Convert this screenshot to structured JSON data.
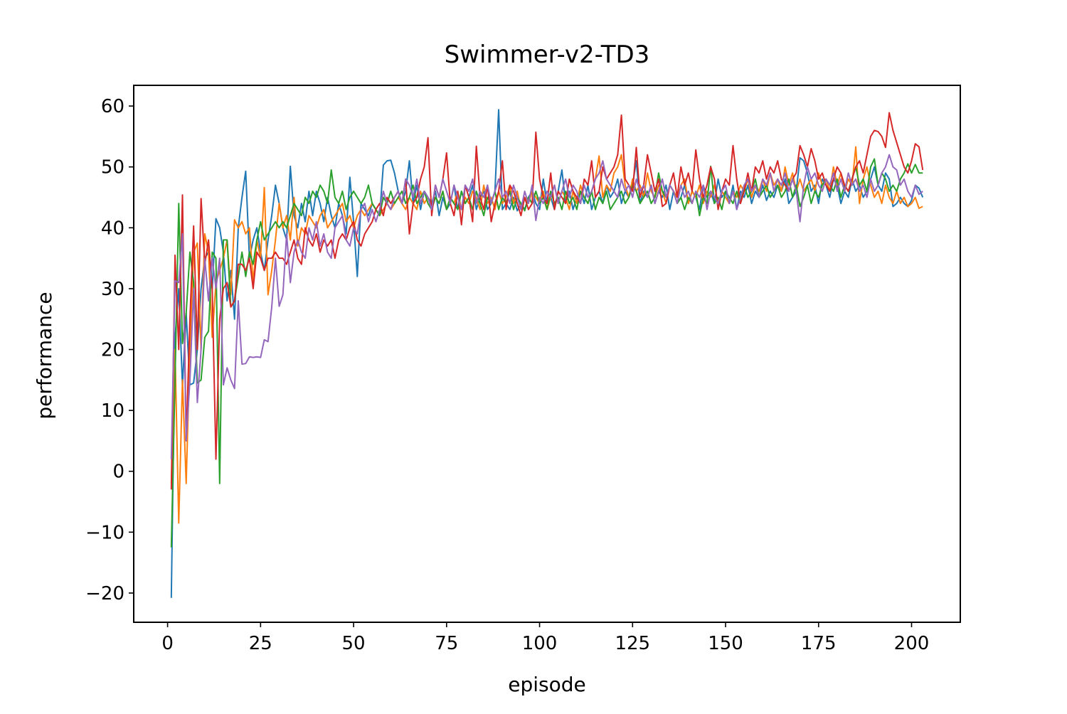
{
  "chart_data": {
    "type": "line",
    "title": "Swimmer-v2-TD3",
    "x_label": "episode",
    "y_label": "performance",
    "xlim": [
      -9.1,
      213.1
    ],
    "ylim": [
      -24.8,
      63.4
    ],
    "xticks": [
      0,
      25,
      50,
      75,
      100,
      125,
      150,
      175,
      200
    ],
    "yticks": [
      {
        "value": -20,
        "label": "−20"
      },
      {
        "value": -10,
        "label": "−10"
      },
      0,
      10,
      20,
      30,
      40,
      50,
      60
    ],
    "x": [
      1,
      2,
      3,
      4,
      5,
      6,
      7,
      8,
      9,
      10,
      11,
      12,
      13,
      14,
      15,
      16,
      17,
      18,
      19,
      20,
      21,
      22,
      23,
      24,
      25,
      26,
      27,
      28,
      29,
      30,
      31,
      32,
      33,
      34,
      35,
      36,
      37,
      38,
      39,
      40,
      41,
      42,
      43,
      44,
      45,
      46,
      47,
      48,
      49,
      50,
      51,
      52,
      53,
      54,
      55,
      56,
      57,
      58,
      59,
      60,
      61,
      62,
      63,
      64,
      65,
      66,
      67,
      68,
      69,
      70,
      71,
      72,
      73,
      74,
      75,
      76,
      77,
      78,
      79,
      80,
      81,
      82,
      83,
      84,
      85,
      86,
      87,
      88,
      89,
      90,
      91,
      92,
      93,
      94,
      95,
      96,
      97,
      98,
      99,
      100,
      101,
      102,
      103,
      104,
      105,
      106,
      107,
      108,
      109,
      110,
      111,
      112,
      113,
      114,
      115,
      116,
      117,
      118,
      119,
      120,
      121,
      122,
      123,
      124,
      125,
      126,
      127,
      128,
      129,
      130,
      131,
      132,
      133,
      134,
      135,
      136,
      137,
      138,
      139,
      140,
      141,
      142,
      143,
      144,
      145,
      146,
      147,
      148,
      149,
      150,
      151,
      152,
      153,
      154,
      155,
      156,
      157,
      158,
      159,
      160,
      161,
      162,
      163,
      164,
      165,
      166,
      167,
      168,
      169,
      170,
      171,
      172,
      173,
      174,
      175,
      176,
      177,
      178,
      179,
      180,
      181,
      182,
      183,
      184,
      185,
      186,
      187,
      188,
      189,
      190,
      191,
      192,
      193,
      194,
      195,
      196,
      197,
      198,
      199,
      200,
      201,
      202,
      203
    ],
    "series": [
      {
        "color": "#1f77b4",
        "values": [
          -20.8,
          22,
          30,
          14,
          26,
          14.2,
          14.5,
          20,
          30,
          35,
          36,
          30,
          41.5,
          40,
          36,
          28,
          33,
          25,
          40,
          45,
          49.3,
          35,
          38,
          40,
          36,
          33,
          38,
          42,
          47,
          44,
          40,
          38,
          50.1,
          42,
          40,
          44,
          41,
          46,
          42,
          46,
          44,
          41,
          45,
          42,
          40,
          44,
          42,
          39,
          48.3,
          41,
          32,
          44,
          43,
          42,
          44,
          43,
          42,
          50.3,
          51,
          51.1,
          49,
          46,
          44,
          46,
          51,
          44,
          47,
          43,
          46,
          45,
          44,
          46,
          42,
          45,
          43,
          44,
          47,
          43,
          46,
          44,
          45,
          47,
          43,
          45,
          46,
          43,
          44,
          46,
          59.4,
          43,
          44,
          43,
          45,
          42.8,
          44,
          43,
          45,
          46,
          44,
          43,
          48,
          44,
          45,
          43,
          46,
          49.5,
          44,
          46,
          43,
          45,
          46,
          44,
          47,
          43,
          45,
          46,
          44,
          47,
          45,
          46,
          48,
          44,
          46,
          45,
          47,
          51,
          44,
          46,
          45,
          47,
          44,
          46,
          45,
          47,
          43,
          46,
          44,
          45,
          47,
          44,
          46,
          45,
          43,
          47,
          45,
          46,
          44,
          48,
          45,
          46,
          44,
          47,
          43,
          46,
          45,
          47,
          44,
          46,
          45,
          47,
          44.5,
          46,
          45,
          47,
          46,
          48,
          44,
          45,
          46,
          51.5,
          51,
          49,
          46,
          47,
          44,
          48,
          47,
          45,
          48,
          47,
          44,
          46,
          45,
          48,
          46,
          47,
          45,
          46,
          48,
          50,
          47,
          46,
          49,
          48,
          43.5,
          44,
          45,
          44,
          43.5,
          44.5,
          47,
          46.5,
          45
        ]
      },
      {
        "color": "#ff7f0e",
        "values": [
          -2,
          20,
          -8.5,
          15,
          -2,
          20,
          36,
          37.5,
          20,
          39,
          36,
          22,
          31,
          33,
          35,
          38,
          29,
          41.3,
          40,
          41,
          39,
          40,
          31,
          38,
          35,
          46.6,
          29,
          33,
          38,
          44,
          40,
          42,
          38,
          45,
          37,
          40,
          39,
          42,
          41,
          40,
          42,
          43,
          40,
          41,
          42,
          43,
          44,
          41,
          42,
          40,
          42,
          43,
          42,
          43,
          44,
          43,
          42,
          43,
          44,
          43,
          44,
          45,
          44,
          43,
          45,
          44,
          43,
          46,
          44,
          45,
          43,
          45,
          44,
          46,
          43,
          45,
          44,
          46,
          43,
          45,
          44,
          46,
          45,
          43,
          47,
          44,
          45,
          43,
          46,
          44,
          45,
          47,
          44,
          46,
          43,
          45,
          44,
          46,
          45,
          44,
          46,
          43,
          45,
          47,
          44,
          46,
          45,
          43,
          46,
          44,
          47,
          45,
          44,
          46,
          48,
          51.8,
          45,
          47,
          46,
          49,
          50,
          52,
          47,
          45,
          48,
          46,
          47,
          45,
          49,
          46,
          45,
          47,
          46,
          44,
          47,
          46,
          45,
          47,
          48,
          44,
          46,
          45,
          47,
          44,
          46,
          45,
          47,
          44,
          46,
          45,
          44,
          46,
          45,
          47,
          46,
          48,
          45,
          47,
          46,
          48,
          46,
          49,
          47,
          48,
          46,
          50,
          47,
          49,
          46,
          48,
          46,
          47,
          48,
          46,
          49,
          47,
          48,
          46,
          50,
          47,
          49,
          46,
          48,
          47,
          53.3,
          44,
          48,
          50,
          47,
          45,
          46,
          44,
          47,
          45,
          44,
          46,
          44,
          45,
          43.5,
          44,
          45,
          43.2,
          43.5
        ]
      },
      {
        "color": "#2ca02c",
        "values": [
          -12.5,
          15,
          44,
          21,
          26,
          36,
          31,
          14.5,
          15,
          22,
          23,
          36,
          35,
          -2,
          38,
          38,
          27,
          28,
          32,
          36,
          32,
          36,
          34,
          38,
          41,
          38,
          39,
          40,
          41,
          40,
          41,
          40,
          42,
          44,
          43,
          42,
          45,
          44,
          46,
          45,
          47,
          46,
          44,
          49.5,
          45,
          44,
          46,
          43,
          45,
          46,
          45,
          44,
          45,
          47,
          44,
          43,
          42,
          45,
          44,
          46,
          44,
          45,
          46,
          44,
          45,
          47,
          44,
          45,
          46,
          44,
          43,
          45,
          44,
          46,
          43,
          45,
          44,
          43,
          46,
          44,
          45,
          43,
          46,
          44,
          42,
          45,
          44,
          46,
          43,
          45,
          44,
          46,
          43,
          45,
          44,
          42.8,
          45,
          44,
          46,
          44,
          45,
          43,
          46,
          44,
          45,
          43,
          46,
          44,
          45,
          43,
          46,
          45,
          44,
          46,
          43,
          45,
          44,
          46,
          43,
          44,
          45,
          46,
          44,
          45,
          47,
          46,
          44,
          45,
          46,
          44,
          45,
          49,
          46,
          45,
          47,
          46,
          44,
          45,
          43,
          45,
          44,
          46,
          42,
          45,
          44,
          50.1,
          44,
          45,
          43,
          46,
          45,
          44,
          46,
          44,
          47,
          45,
          46,
          48,
          45,
          46,
          47,
          45,
          46,
          47,
          45,
          46,
          48,
          45,
          47,
          43.5,
          45,
          47,
          44,
          46,
          45,
          47,
          48,
          47,
          46,
          48,
          45,
          47,
          46,
          48,
          50,
          47,
          48,
          46,
          50,
          51.3,
          47,
          49,
          48,
          46,
          47,
          46,
          48,
          49,
          50.5,
          49,
          50.4,
          49,
          49
        ]
      },
      {
        "color": "#d62728",
        "values": [
          -3,
          35.5,
          20,
          45.4,
          5,
          25,
          40.3,
          20,
          44.8,
          34,
          38,
          30,
          2,
          25,
          30,
          31,
          27,
          28,
          34,
          34,
          33,
          35,
          30,
          36,
          35,
          33,
          35,
          35,
          36,
          35,
          35,
          34,
          36,
          38,
          35,
          34,
          40,
          38,
          37,
          39,
          36,
          38,
          37,
          38,
          35,
          38,
          39,
          38,
          40,
          41,
          38,
          37,
          39,
          40,
          41,
          43,
          44,
          42,
          45,
          44,
          45,
          46,
          44,
          48,
          39,
          44,
          45,
          48,
          50,
          54.8,
          42,
          47,
          45,
          48,
          52.3,
          44,
          42,
          46,
          40.5,
          47,
          45,
          41,
          53.4,
          45,
          43,
          47,
          41,
          44,
          46,
          51,
          43,
          47,
          46,
          44,
          42,
          45,
          43,
          44,
          55.7,
          48,
          45,
          44,
          49,
          43,
          46,
          45,
          44,
          48,
          46,
          45,
          44,
          48,
          47,
          51,
          45,
          46,
          50,
          48,
          49,
          50,
          52,
          58.5,
          48,
          47,
          46,
          53.2,
          45,
          47,
          52,
          49,
          46,
          48,
          43.5,
          44,
          47,
          49,
          45,
          50,
          47,
          49,
          46,
          52.8,
          48,
          45,
          47,
          50,
          48,
          43,
          46,
          48,
          47,
          53.5,
          48,
          44,
          46,
          49,
          46,
          50,
          49,
          51,
          48,
          50,
          49,
          51,
          48,
          47,
          46,
          48,
          49,
          53.5,
          52,
          50,
          53,
          51,
          48,
          49,
          47,
          46,
          48,
          50,
          49,
          47,
          46,
          48,
          50,
          51,
          49,
          52,
          55,
          56,
          55.8,
          55,
          53.2,
          58.9,
          56,
          54,
          52,
          50,
          49,
          51,
          53.8,
          53.3,
          49.5
        ]
      },
      {
        "color": "#9467bd",
        "values": [
          2,
          31.3,
          31,
          39,
          5,
          15,
          30,
          11.3,
          20,
          35,
          28,
          35,
          30,
          35,
          14.2,
          17,
          15,
          13.6,
          28,
          17.6,
          17.7,
          18.8,
          18.7,
          18.8,
          18.7,
          21.6,
          21.3,
          27,
          35,
          27.1,
          29,
          39,
          31,
          36,
          38,
          36,
          35,
          40,
          38,
          41,
          37,
          39,
          36,
          35,
          40,
          41,
          42,
          38,
          37,
          40,
          39,
          43,
          44,
          41,
          43,
          41,
          43,
          46,
          44,
          43,
          45,
          46,
          44,
          48,
          47,
          45,
          48,
          44,
          46,
          45,
          43,
          47,
          45,
          48,
          46,
          44,
          47,
          45,
          43,
          47,
          46,
          48,
          44,
          46,
          45,
          47,
          44,
          46,
          48,
          45,
          46,
          44,
          47,
          45,
          43,
          46,
          44,
          47,
          41.2,
          45,
          44,
          46,
          45,
          47,
          44,
          46,
          48,
          45,
          47,
          46,
          44,
          47,
          45,
          46,
          48,
          49,
          51,
          48,
          47,
          46,
          45,
          48,
          46,
          47,
          45,
          48,
          46,
          47,
          45,
          47,
          44,
          46,
          48,
          45,
          47,
          46,
          44,
          47,
          45,
          46,
          44,
          46,
          45,
          47,
          43,
          46,
          45,
          44,
          46,
          47,
          44,
          46,
          43,
          45,
          47,
          48,
          46,
          47,
          45,
          48,
          47,
          49,
          46,
          48,
          47,
          49,
          46,
          48,
          46,
          41,
          47,
          50,
          48,
          49,
          47,
          46,
          48,
          47,
          49,
          46,
          48,
          46,
          49,
          47,
          48,
          46,
          47,
          45,
          48,
          46,
          47,
          49,
          50,
          52,
          50,
          49.5,
          47,
          48,
          46,
          45,
          47,
          45.5,
          46
        ]
      }
    ]
  }
}
